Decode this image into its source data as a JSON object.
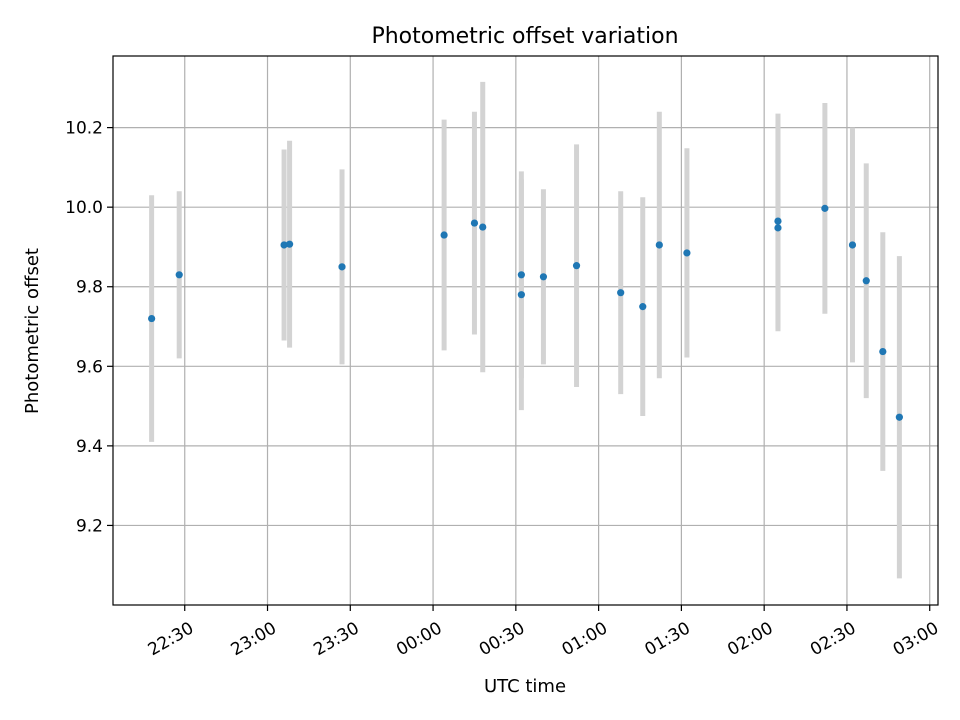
{
  "chart_data": {
    "type": "scatter",
    "title": "Photometric offset variation",
    "xlabel": "UTC time",
    "ylabel": "Photometric offset",
    "x_axis": {
      "type": "time",
      "range": [
        "22:04",
        "03:03"
      ],
      "ticks": [
        "22:30",
        "23:00",
        "23:30",
        "00:00",
        "00:30",
        "01:00",
        "01:30",
        "02:00",
        "02:30",
        "03:00"
      ],
      "tick_label_rotation": "30 degrees"
    },
    "y_axis": {
      "range": [
        9.0,
        10.38
      ],
      "ticks": [
        "9.2",
        "9.4",
        "9.6",
        "9.8",
        "10.0",
        "10.2"
      ]
    },
    "grid": true,
    "point_color": "#1f77b4",
    "errorbar_color": "#d3d3d3",
    "points": [
      {
        "x": "22:18",
        "y": 9.72,
        "err": 0.31
      },
      {
        "x": "22:28",
        "y": 9.83,
        "err": 0.21
      },
      {
        "x": "23:06",
        "y": 9.905,
        "err": 0.24
      },
      {
        "x": "23:08",
        "y": 9.907,
        "err": 0.26
      },
      {
        "x": "23:27",
        "y": 9.85,
        "err": 0.245
      },
      {
        "x": "00:04",
        "y": 9.93,
        "err": 0.29
      },
      {
        "x": "00:15",
        "y": 9.96,
        "err": 0.28
      },
      {
        "x": "00:18",
        "y": 9.95,
        "err": 0.365
      },
      {
        "x": "00:32",
        "y": 9.78,
        "err": 0.29
      },
      {
        "x": "00:32",
        "y": 9.83,
        "err": 0.26
      },
      {
        "x": "00:40",
        "y": 9.825,
        "err": 0.22
      },
      {
        "x": "00:52",
        "y": 9.853,
        "err": 0.305
      },
      {
        "x": "01:08",
        "y": 9.785,
        "err": 0.255
      },
      {
        "x": "01:16",
        "y": 9.75,
        "err": 0.275
      },
      {
        "x": "01:22",
        "y": 9.905,
        "err": 0.335
      },
      {
        "x": "01:32",
        "y": 9.885,
        "err": 0.263
      },
      {
        "x": "02:05",
        "y": 9.965,
        "err": 0.27
      },
      {
        "x": "02:05",
        "y": 9.948,
        "err": 0.26
      },
      {
        "x": "02:22",
        "y": 9.997,
        "err": 0.265
      },
      {
        "x": "02:32",
        "y": 9.905,
        "err": 0.295
      },
      {
        "x": "02:37",
        "y": 9.815,
        "err": 0.295
      },
      {
        "x": "02:43",
        "y": 9.637,
        "err": 0.3
      },
      {
        "x": "02:49",
        "y": 9.472,
        "err": 0.405
      }
    ]
  }
}
